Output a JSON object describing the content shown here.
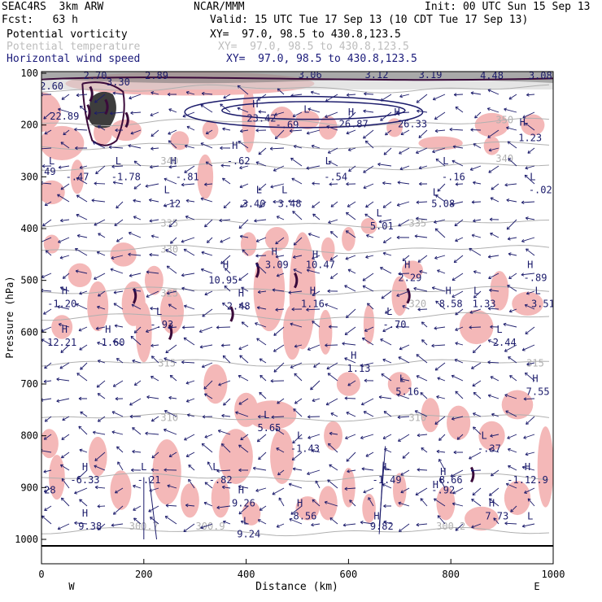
{
  "header": {
    "model": "SEAC4RS  3km ARW",
    "org": "NCAR/MMM",
    "init": "Init: 00 UTC Sun 15 Sep 13",
    "fcst": "Fcst:   63 h",
    "valid": "Valid: 15 UTC Tue 17 Sep 13 (10 CDT Tue 17 Sep 13)",
    "fields": [
      {
        "name": "Potential vorticity",
        "xy": "XY=  97.0, 98.5 to 430.8,123.5",
        "color": "#000000"
      },
      {
        "name": "Potential temperature",
        "xy": "XY=  97.0, 98.5 to 430.8,123.5",
        "color": "#bdbdbd"
      },
      {
        "name": "Horizontal wind speed",
        "xy": "XY=  97.0, 98.5 to 430.8,123.5",
        "color": "#1a1a7a"
      }
    ]
  },
  "chart_data": {
    "type": "cross-section",
    "xlabel": "Distance (km)",
    "ylabel": "Pressure (hPa)",
    "xlim": [
      0,
      1000
    ],
    "ylim": [
      1000,
      100
    ],
    "x_ticks": [
      0,
      200,
      400,
      600,
      800,
      1000
    ],
    "y_ticks": [
      100,
      200,
      300,
      400,
      500,
      600,
      700,
      800,
      900,
      1000
    ],
    "x_endpoints": {
      "left": "W",
      "right": "E"
    },
    "colors": {
      "pv_shading": "#f4b8b8",
      "wind": "#1b1b6b",
      "theta": "#b0b0b0",
      "pv": "#3a0a3a"
    },
    "theta_contours": [
      {
        "label": "355",
        "p": 130
      },
      {
        "label": "350",
        "p": 195
      },
      {
        "label": "345",
        "p": 240
      },
      {
        "label": "340",
        "p": 280
      },
      {
        "label": "335",
        "p": 390
      },
      {
        "label": "330",
        "p": 440
      },
      {
        "label": "325",
        "p": 520
      },
      {
        "label": "320",
        "p": 570
      },
      {
        "label": "315",
        "p": 660
      },
      {
        "label": "310",
        "p": 765
      },
      {
        "label": "305",
        "p": 880
      },
      {
        "label": "300",
        "p": 985
      }
    ],
    "theta_labels": [
      {
        "text": "350",
        "x": 905,
        "p": 190
      },
      {
        "text": "340",
        "x": 250,
        "p": 270
      },
      {
        "text": "340",
        "x": 905,
        "p": 265
      },
      {
        "text": "335",
        "x": 250,
        "p": 390
      },
      {
        "text": "335",
        "x": 735,
        "p": 390
      },
      {
        "text": "330",
        "x": 250,
        "p": 440
      },
      {
        "text": "325",
        "x": 250,
        "p": 525
      },
      {
        "text": "320",
        "x": 735,
        "p": 545
      },
      {
        "text": "315",
        "x": 245,
        "p": 660
      },
      {
        "text": "315",
        "x": 965,
        "p": 660
      },
      {
        "text": "310",
        "x": 250,
        "p": 765
      },
      {
        "text": "310",
        "x": 735,
        "p": 765
      },
      {
        "text": "300.7",
        "x": 200,
        "p": 975
      },
      {
        "text": "300.9",
        "x": 330,
        "p": 975
      },
      {
        "text": "300.2",
        "x": 800,
        "p": 975
      }
    ],
    "hl_labels": [
      {
        "text": "2.70",
        "x": 105,
        "p": 105
      },
      {
        "text": "3.30",
        "x": 150,
        "p": 117
      },
      {
        "text": "2.89",
        "x": 225,
        "p": 105
      },
      {
        "text": "3.06",
        "x": 525,
        "p": 103
      },
      {
        "text": "3.12",
        "x": 655,
        "p": 103
      },
      {
        "text": "3.19",
        "x": 760,
        "p": 103
      },
      {
        "text": "4.48",
        "x": 880,
        "p": 105
      },
      {
        "text": "3.08",
        "x": 975,
        "p": 105
      },
      {
        "text": "2.60",
        "x": 20,
        "p": 125
      },
      {
        "text": "22.89",
        "x": 45,
        "p": 183
      },
      {
        "text": "H",
        "x": 418,
        "p": 160
      },
      {
        "text": "23.42",
        "x": 430,
        "p": 187
      },
      {
        "text": "L",
        "x": 518,
        "p": 170
      },
      {
        "text": "-.69",
        "x": 480,
        "p": 200
      },
      {
        "text": "H",
        "x": 605,
        "p": 175
      },
      {
        "text": "26.87",
        "x": 610,
        "p": 198
      },
      {
        "text": "H",
        "x": 695,
        "p": 175
      },
      {
        "text": "26.33",
        "x": 725,
        "p": 198
      },
      {
        "text": "H",
        "x": 940,
        "p": 195
      },
      {
        "text": "1.23",
        "x": 955,
        "p": 225
      },
      {
        "text": "L",
        "x": 20,
        "p": 270
      },
      {
        "text": "-.49",
        "x": 5,
        "p": 290
      },
      {
        "text": "-.47",
        "x": 70,
        "p": 300
      },
      {
        "text": "L",
        "x": 150,
        "p": 270
      },
      {
        "text": "-1.78",
        "x": 165,
        "p": 300
      },
      {
        "text": "H",
        "x": 258,
        "p": 270
      },
      {
        "text": "-.81",
        "x": 285,
        "p": 300
      },
      {
        "text": "H",
        "x": 378,
        "p": 240
      },
      {
        "text": "-.62",
        "x": 385,
        "p": 270
      },
      {
        "text": "L",
        "x": 560,
        "p": 270
      },
      {
        "text": "-.54",
        "x": 575,
        "p": 300
      },
      {
        "text": "L",
        "x": 790,
        "p": 270
      },
      {
        "text": "-.16",
        "x": 805,
        "p": 300
      },
      {
        "text": "L",
        "x": 960,
        "p": 300
      },
      {
        "text": "-.02",
        "x": 975,
        "p": 325
      },
      {
        "text": "L",
        "x": 245,
        "p": 325
      },
      {
        "text": ".12",
        "x": 255,
        "p": 352
      },
      {
        "text": "L",
        "x": 425,
        "p": 325
      },
      {
        "text": "3.40",
        "x": 415,
        "p": 352
      },
      {
        "text": "L",
        "x": 475,
        "p": 325
      },
      {
        "text": "3.48",
        "x": 485,
        "p": 352
      },
      {
        "text": "L",
        "x": 660,
        "p": 370
      },
      {
        "text": "5.01",
        "x": 665,
        "p": 395
      },
      {
        "text": "L",
        "x": 770,
        "p": 330
      },
      {
        "text": "5.08",
        "x": 785,
        "p": 352
      },
      {
        "text": "H",
        "x": 455,
        "p": 445
      },
      {
        "text": "3.09",
        "x": 460,
        "p": 470
      },
      {
        "text": "H",
        "x": 535,
        "p": 450
      },
      {
        "text": "10.47",
        "x": 545,
        "p": 470
      },
      {
        "text": "H",
        "x": 360,
        "p": 470
      },
      {
        "text": "10.95",
        "x": 355,
        "p": 500
      },
      {
        "text": "H",
        "x": 715,
        "p": 470
      },
      {
        "text": "2.29",
        "x": 720,
        "p": 495
      },
      {
        "text": "H",
        "x": 955,
        "p": 470
      },
      {
        "text": "-.89",
        "x": 965,
        "p": 495
      },
      {
        "text": "H",
        "x": 45,
        "p": 520
      },
      {
        "text": "-1.20",
        "x": 40,
        "p": 545
      },
      {
        "text": "H",
        "x": 390,
        "p": 525
      },
      {
        "text": "2.48",
        "x": 385,
        "p": 550
      },
      {
        "text": "H",
        "x": 530,
        "p": 520
      },
      {
        "text": "1.16",
        "x": 530,
        "p": 545
      },
      {
        "text": "H",
        "x": 795,
        "p": 520
      },
      {
        "text": "8.58",
        "x": 800,
        "p": 545
      },
      {
        "text": "L",
        "x": 850,
        "p": 520
      },
      {
        "text": "1.33",
        "x": 865,
        "p": 545
      },
      {
        "text": "L",
        "x": 970,
        "p": 520
      },
      {
        "text": "3.51",
        "x": 980,
        "p": 545
      },
      {
        "text": "L",
        "x": 230,
        "p": 560
      },
      {
        "text": "-.93",
        "x": 235,
        "p": 585
      },
      {
        "text": "L",
        "x": 680,
        "p": 560
      },
      {
        "text": "-.70",
        "x": 690,
        "p": 585
      },
      {
        "text": "H",
        "x": 45,
        "p": 595
      },
      {
        "text": "12.21",
        "x": 40,
        "p": 620
      },
      {
        "text": "H",
        "x": 130,
        "p": 595
      },
      {
        "text": "1.60",
        "x": 140,
        "p": 620
      },
      {
        "text": "L",
        "x": 895,
        "p": 595
      },
      {
        "text": "2.44",
        "x": 905,
        "p": 620
      },
      {
        "text": "H",
        "x": 610,
        "p": 645
      },
      {
        "text": "1.13",
        "x": 620,
        "p": 670
      },
      {
        "text": "L",
        "x": 705,
        "p": 690
      },
      {
        "text": "5.16",
        "x": 715,
        "p": 715
      },
      {
        "text": "H",
        "x": 965,
        "p": 690
      },
      {
        "text": "7.55",
        "x": 970,
        "p": 715
      },
      {
        "text": "L",
        "x": 440,
        "p": 760
      },
      {
        "text": "5.65",
        "x": 445,
        "p": 785
      },
      {
        "text": "L",
        "x": 505,
        "p": 800
      },
      {
        "text": "-1.43",
        "x": 515,
        "p": 825
      },
      {
        "text": "L",
        "x": 865,
        "p": 800
      },
      {
        "text": "-.37",
        "x": 875,
        "p": 825
      },
      {
        "text": "H",
        "x": 85,
        "p": 860
      },
      {
        "text": "-6.33",
        "x": 85,
        "p": 885
      },
      {
        "text": "L",
        "x": 200,
        "p": 860
      },
      {
        "text": "-.21",
        "x": 210,
        "p": 885
      },
      {
        "text": "L",
        "x": 340,
        "p": 860
      },
      {
        "text": "-.82",
        "x": 350,
        "p": 885
      },
      {
        "text": "L",
        "x": 675,
        "p": 860
      },
      {
        "text": "-1.49",
        "x": 675,
        "p": 885
      },
      {
        "text": "H",
        "x": 785,
        "p": 870
      },
      {
        "text": "8.66",
        "x": 800,
        "p": 885
      },
      {
        "text": "H",
        "x": 770,
        "p": 895
      },
      {
        "text": "-.92",
        "x": 785,
        "p": 905
      },
      {
        "text": "H",
        "x": 950,
        "p": 860
      },
      {
        "text": "-1.12.9",
        "x": 950,
        "p": 885
      },
      {
        "text": "-.28",
        "x": 5,
        "p": 905
      },
      {
        "text": "H",
        "x": 390,
        "p": 905
      },
      {
        "text": "9.26",
        "x": 395,
        "p": 930
      },
      {
        "text": "H",
        "x": 505,
        "p": 930
      },
      {
        "text": "8.56",
        "x": 515,
        "p": 955
      },
      {
        "text": "H",
        "x": 880,
        "p": 930
      },
      {
        "text": "7.73",
        "x": 890,
        "p": 955
      },
      {
        "text": "H",
        "x": 85,
        "p": 950
      },
      {
        "text": "9.38",
        "x": 95,
        "p": 975
      },
      {
        "text": "L",
        "x": 400,
        "p": 965
      },
      {
        "text": "9.24",
        "x": 405,
        "p": 990
      },
      {
        "text": "H",
        "x": 655,
        "p": 955
      },
      {
        "text": "9.82",
        "x": 665,
        "p": 975
      },
      {
        "text": "L",
        "x": 955,
        "p": 955
      }
    ],
    "jets": [
      {
        "x0": 280,
        "x1": 745,
        "p0": 145,
        "p1": 205,
        "label": "jet"
      }
    ]
  }
}
